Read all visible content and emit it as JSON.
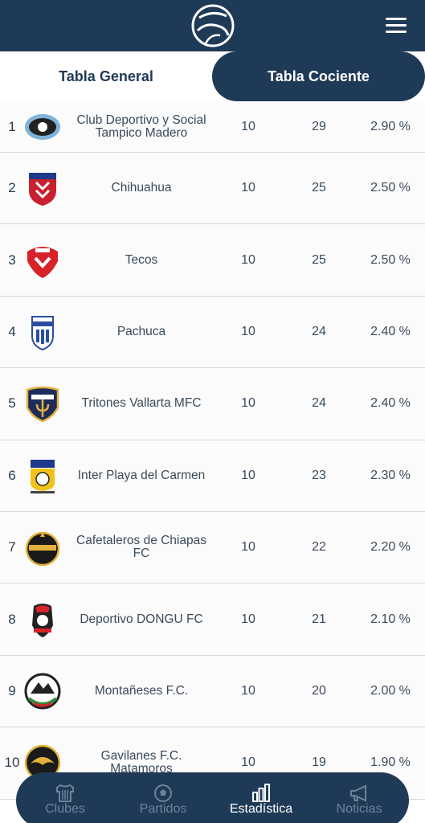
{
  "header": {
    "logo_icon": "ball-logo-icon",
    "menu_icon": "hamburger-menu-icon"
  },
  "tabs": [
    {
      "label": "Tabla General",
      "active": false
    },
    {
      "label": "Tabla Cociente",
      "active": true
    }
  ],
  "rows": [
    {
      "pos": "1",
      "name": "Club Deportivo y Social Tampico Madero",
      "pj": "10",
      "pts": "29",
      "coc": "2.90 %",
      "crest_icon": "tampico-madero-crest-icon"
    },
    {
      "pos": "2",
      "name": "Chihuahua",
      "pj": "10",
      "pts": "25",
      "coc": "2.50 %",
      "crest_icon": "chihuahua-crest-icon"
    },
    {
      "pos": "3",
      "name": "Tecos",
      "pj": "10",
      "pts": "25",
      "coc": "2.50 %",
      "crest_icon": "tecos-crest-icon"
    },
    {
      "pos": "4",
      "name": "Pachuca",
      "pj": "10",
      "pts": "24",
      "coc": "2.40 %",
      "crest_icon": "pachuca-crest-icon"
    },
    {
      "pos": "5",
      "name": "Tritones Vallarta MFC",
      "pj": "10",
      "pts": "24",
      "coc": "2.40 %",
      "crest_icon": "tritones-crest-icon"
    },
    {
      "pos": "6",
      "name": "Inter Playa del Carmen",
      "pj": "10",
      "pts": "23",
      "coc": "2.30 %",
      "crest_icon": "inter-playa-crest-icon"
    },
    {
      "pos": "7",
      "name": "Cafetaleros de Chiapas FC",
      "pj": "10",
      "pts": "22",
      "coc": "2.20 %",
      "crest_icon": "cafetaleros-crest-icon"
    },
    {
      "pos": "8",
      "name": "Deportivo DONGU FC",
      "pj": "10",
      "pts": "21",
      "coc": "2.10 %",
      "crest_icon": "dongu-crest-icon"
    },
    {
      "pos": "9",
      "name": "Montañeses F.C.",
      "pj": "10",
      "pts": "20",
      "coc": "2.00 %",
      "crest_icon": "montaneses-crest-icon"
    },
    {
      "pos": "10",
      "name": "Gavilanes F.C. Matamoros",
      "pj": "10",
      "pts": "19",
      "coc": "1.90 %",
      "crest_icon": "gavilanes-crest-icon"
    }
  ],
  "bottom_nav": [
    {
      "label": "Clubes",
      "icon": "jersey-icon",
      "active": false
    },
    {
      "label": "Partidos",
      "icon": "soccer-ball-icon",
      "active": false
    },
    {
      "label": "Estadística",
      "icon": "bar-chart-icon",
      "active": true
    },
    {
      "label": "Noticias",
      "icon": "megaphone-icon",
      "active": false
    }
  ],
  "colors": {
    "primary": "#1f3a57",
    "text": "#3a4a5a",
    "nav_inactive": "#6f8299"
  }
}
